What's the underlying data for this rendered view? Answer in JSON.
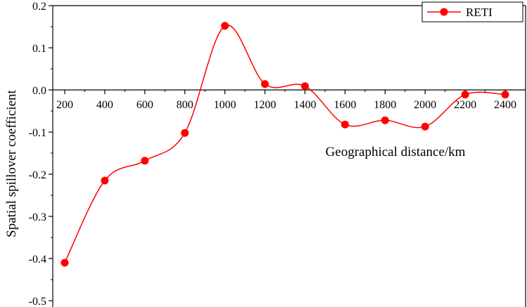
{
  "chart_data": {
    "type": "line",
    "title": "",
    "xlabel": "Geographical distance/km",
    "ylabel": "Spatial spillover coefficient",
    "x": [
      200,
      400,
      600,
      800,
      1000,
      1200,
      1400,
      1600,
      1800,
      2000,
      2200,
      2400
    ],
    "series": [
      {
        "name": "RETI",
        "values": [
          -0.41,
          -0.215,
          -0.168,
          -0.102,
          0.152,
          0.014,
          0.009,
          -0.082,
          -0.072,
          -0.087,
          -0.011,
          -0.011
        ]
      }
    ],
    "ylim": [
      -0.5,
      0.2
    ],
    "yticks": [
      "0.2",
      "0.1",
      "0.0",
      "-0.1",
      "-0.2",
      "-0.3",
      "-0.4",
      "-0.5"
    ],
    "xticks": [
      "200",
      "400",
      "600",
      "800",
      "1000",
      "1200",
      "1400",
      "1600",
      "1800",
      "2000",
      "2200",
      "2400"
    ],
    "grid": false,
    "legend_position": "top-right",
    "colors": {
      "series": "#ff0000",
      "axis": "#000000"
    }
  }
}
